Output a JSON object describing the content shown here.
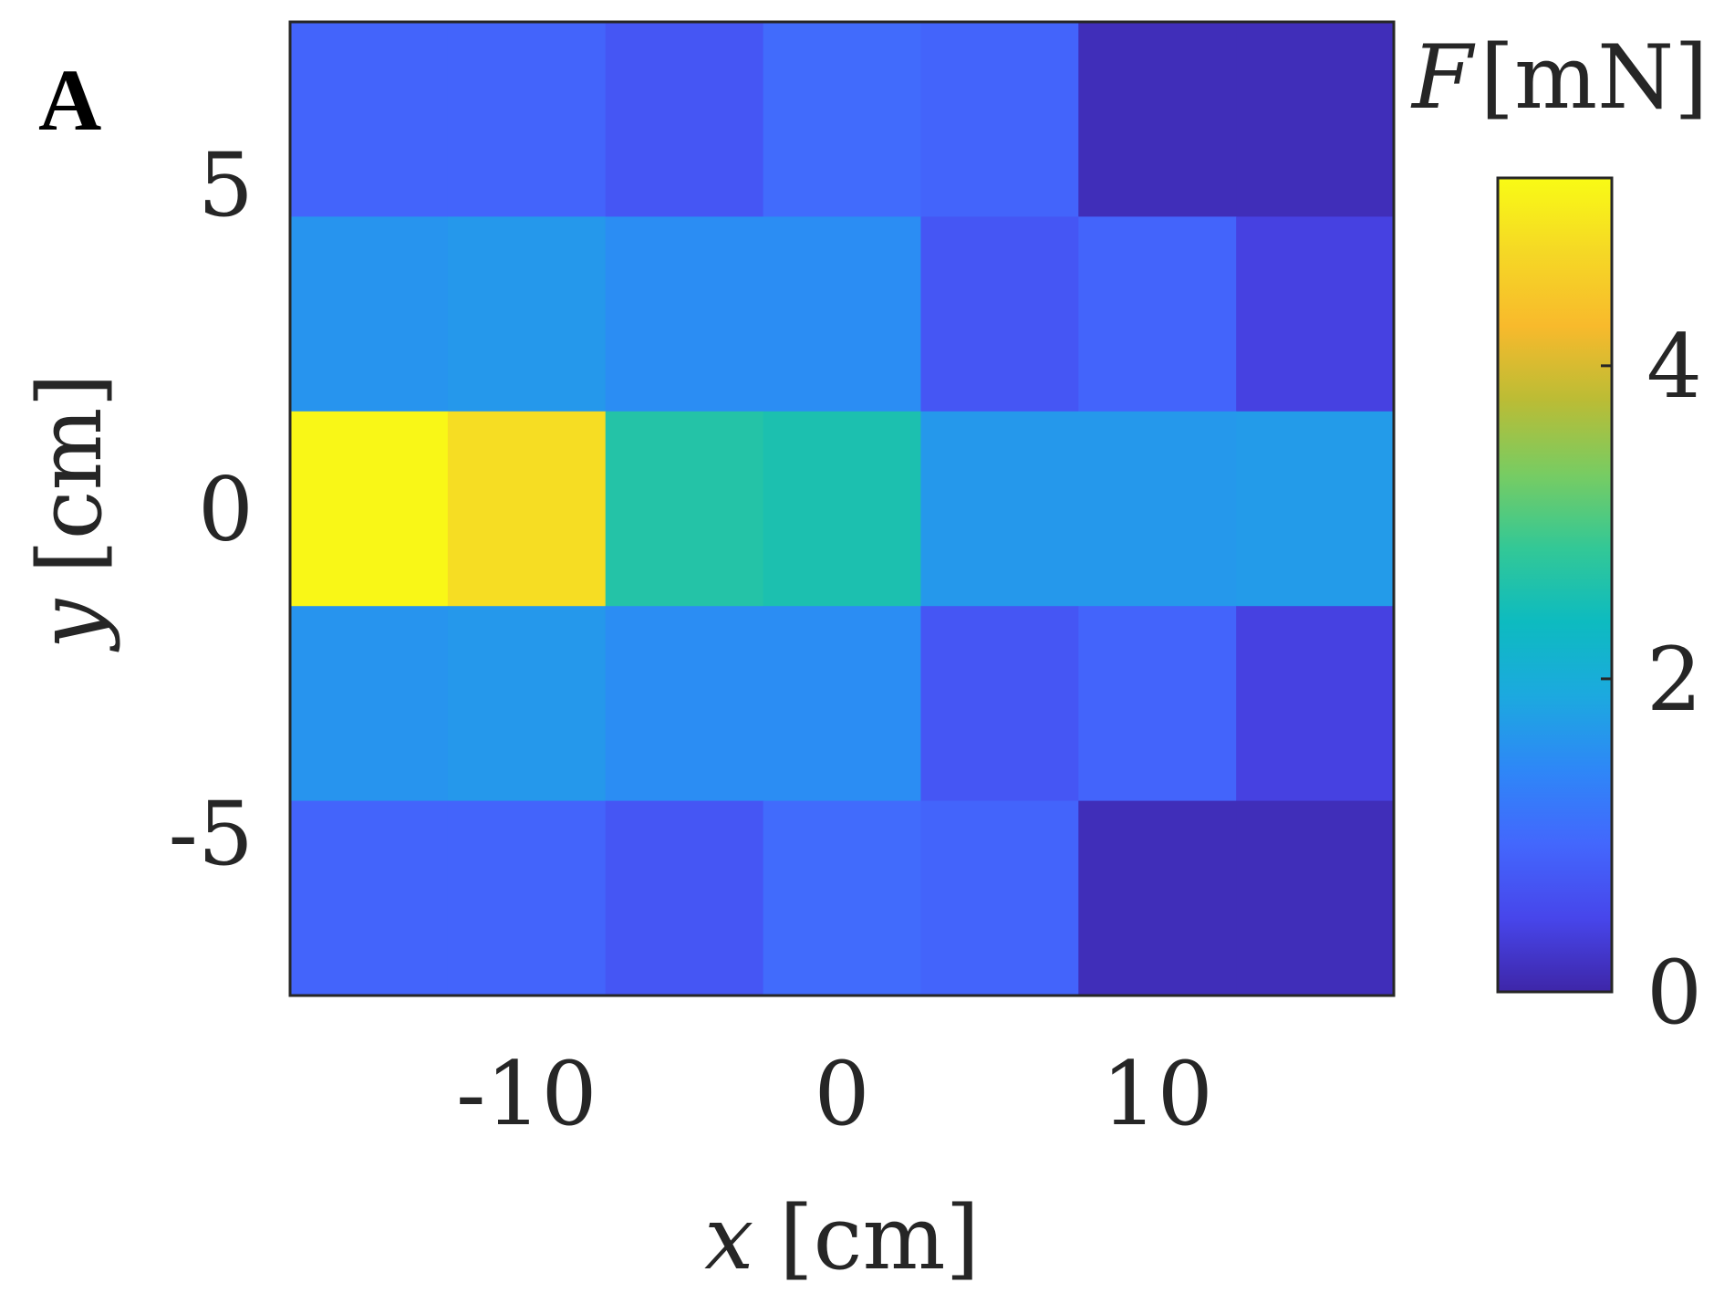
{
  "chart_data": {
    "type": "heatmap",
    "panel_label": "A",
    "x_centers": [
      -15,
      -10,
      -5,
      0,
      5,
      10,
      15
    ],
    "y_centers": [
      6,
      3,
      0,
      -3,
      -6
    ],
    "values": [
      [
        0.9,
        0.9,
        0.7,
        1.0,
        0.9,
        0.12,
        0.12
      ],
      [
        1.6,
        1.65,
        1.5,
        1.5,
        0.7,
        0.9,
        0.4
      ],
      [
        5.15,
        4.8,
        2.65,
        2.55,
        1.65,
        1.65,
        1.7
      ],
      [
        1.6,
        1.65,
        1.5,
        1.5,
        0.7,
        0.9,
        0.4
      ],
      [
        0.9,
        0.9,
        0.7,
        1.0,
        0.9,
        0.12,
        0.12
      ]
    ],
    "xlim": [
      -17.5,
      17.5
    ],
    "ylim": [
      -7.5,
      7.5
    ],
    "xticks": [
      -10,
      0,
      10
    ],
    "xtick_labels": [
      "-10",
      "0",
      "10"
    ],
    "yticks": [
      5,
      0,
      -5
    ],
    "ytick_labels": [
      "5",
      "0",
      "-5"
    ],
    "xlabel": {
      "var": "x",
      "unit": "[cm]"
    },
    "ylabel": {
      "var": "y",
      "unit": "[cm]"
    },
    "colorbar": {
      "title_var": "F",
      "title_unit": "[mN]",
      "clim": [
        0,
        5.2
      ],
      "ticks": [
        0,
        2,
        4
      ],
      "tick_labels": [
        "0",
        "2",
        "4"
      ],
      "colormap": "parula",
      "stops": [
        "#3e26a8",
        "#4746eb",
        "#4367fd",
        "#2e87f7",
        "#1ca9df",
        "#0dbbc0",
        "#33c896",
        "#78cc62",
        "#bbbc35",
        "#f8ba2c",
        "#f5d825",
        "#f9fb15"
      ]
    }
  }
}
